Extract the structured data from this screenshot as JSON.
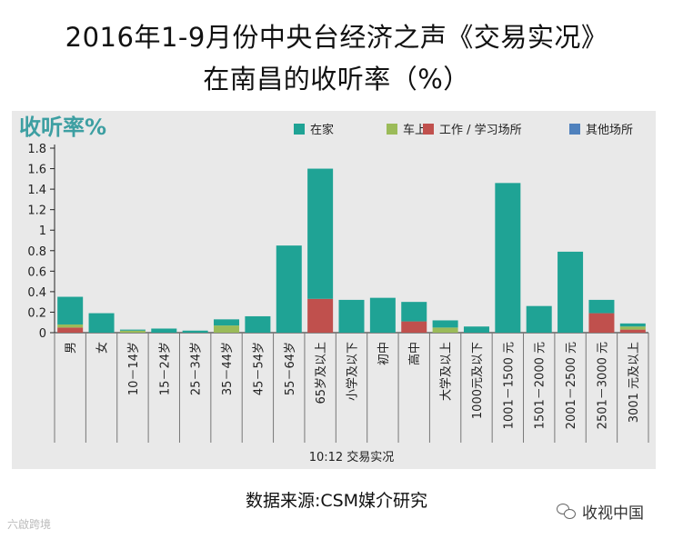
{
  "title_line1": "2016年1-9月份中央台经济之声《交易实况》",
  "title_line2": "在南昌的收听率（%）",
  "source": "数据来源:CSM媒介研究",
  "watermark_left": "六啟跨境",
  "watermark_right": "收视中国",
  "chart_data": {
    "type": "bar",
    "stacked": true,
    "ylabel": "收听率%",
    "xfooter": "10:12  交易实况",
    "ylim": [
      0,
      1.8
    ],
    "yticks": [
      "0",
      "0.2",
      "0.4",
      "0.6",
      "0.8",
      "1",
      "1.2",
      "1.4",
      "1.6",
      "1.8"
    ],
    "grid": false,
    "legend_position": "top-right",
    "categories": [
      "男",
      "女",
      "10－14岁",
      "15－24岁",
      "25－34岁",
      "35－44岁",
      "45－54岁",
      "55－64岁",
      "65岁及以上",
      "小学及以下",
      "初中",
      "高中",
      "大学及以上",
      "1000元及以下",
      "1001－1500 元",
      "1501－2000 元",
      "2001－2500 元",
      "2501－3000 元",
      "3001 元及以上"
    ],
    "series": [
      {
        "name": "工作 / 学习场所",
        "color": "#c0504d",
        "values": [
          0.05,
          0,
          0,
          0,
          0,
          0,
          0,
          0,
          0.33,
          0,
          0,
          0.11,
          0,
          0,
          0,
          0,
          0,
          0.19,
          0.03
        ]
      },
      {
        "name": "车上",
        "color": "#9bbb59",
        "values": [
          0.03,
          0,
          0.02,
          0,
          0,
          0.07,
          0,
          0,
          0,
          0,
          0,
          0,
          0.05,
          0,
          0,
          0,
          0,
          0,
          0.03
        ]
      },
      {
        "name": "在家",
        "color": "#1fa395",
        "values": [
          0.27,
          0.19,
          0.01,
          0.04,
          0.02,
          0.06,
          0.16,
          0.85,
          1.27,
          0.32,
          0.34,
          0.19,
          0.07,
          0.06,
          1.46,
          0.26,
          0.79,
          0.13,
          0.03
        ]
      },
      {
        "name": "其他场所",
        "color": "#4f81bd",
        "values": [
          0,
          0,
          0,
          0,
          0,
          0,
          0,
          0,
          0,
          0,
          0,
          0,
          0,
          0,
          0,
          0,
          0,
          0,
          0
        ]
      }
    ],
    "legend_order": [
      "在家",
      "车上",
      "工作 / 学习场所",
      "其他场所"
    ]
  }
}
